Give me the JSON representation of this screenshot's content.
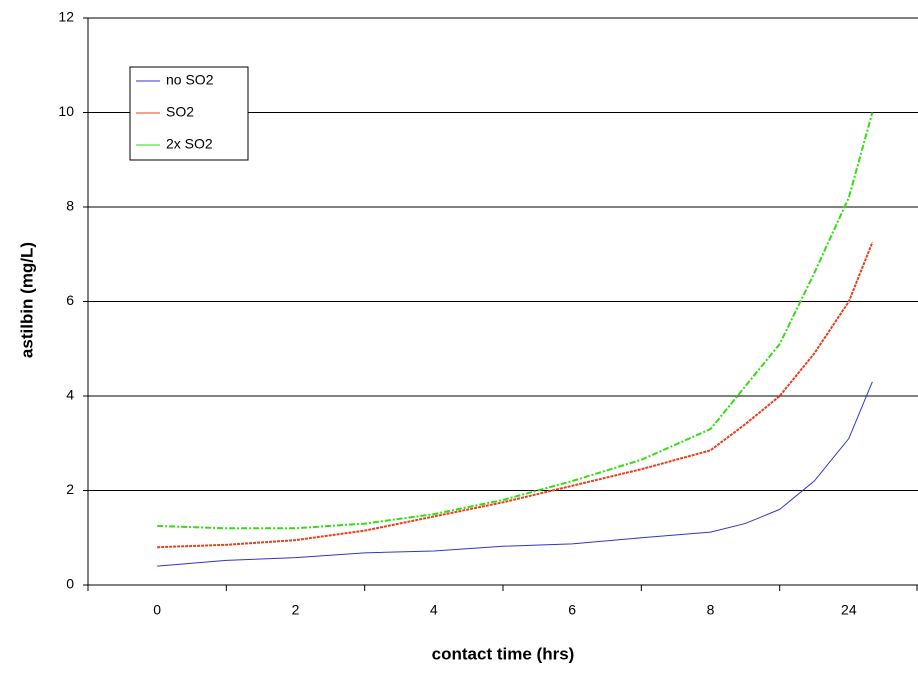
{
  "chart_data": {
    "type": "line",
    "x_title": "contact time (hrs)",
    "y_title": "astilbin (mg/L)",
    "x": [
      0,
      0.5,
      1,
      1.5,
      2,
      2.5,
      3,
      3.5,
      4,
      4.25,
      4.5,
      4.75,
      5,
      5.17
    ],
    "xlim": [
      -0.5,
      5.5
    ],
    "xticks": [
      {
        "value": 0,
        "label": "0"
      },
      {
        "value": 1,
        "label": "2"
      },
      {
        "value": 2,
        "label": "4"
      },
      {
        "value": 3,
        "label": "6"
      },
      {
        "value": 4,
        "label": "8"
      },
      {
        "value": 5,
        "label": "24"
      }
    ],
    "ylim": [
      0,
      12
    ],
    "yticks": [
      0,
      2,
      4,
      6,
      8,
      10,
      12
    ],
    "grid": true,
    "legend": "top-left",
    "series": [
      {
        "name": "no SO2",
        "color": "#3333cc",
        "values": [
          0.4,
          0.52,
          0.58,
          0.68,
          0.72,
          0.82,
          0.87,
          1.0,
          1.12,
          1.3,
          1.6,
          2.2,
          3.1,
          4.3
        ]
      },
      {
        "name": "SO2",
        "color": "#e8401c",
        "values": [
          0.8,
          0.85,
          0.95,
          1.15,
          1.45,
          1.75,
          2.1,
          2.45,
          2.85,
          3.4,
          4.0,
          4.9,
          6.0,
          7.25
        ]
      },
      {
        "name": "2x SO2",
        "color": "#33dd11",
        "values": [
          1.25,
          1.2,
          1.2,
          1.3,
          1.5,
          1.8,
          2.2,
          2.65,
          3.3,
          4.2,
          5.1,
          6.6,
          8.2,
          10.0
        ]
      }
    ]
  }
}
